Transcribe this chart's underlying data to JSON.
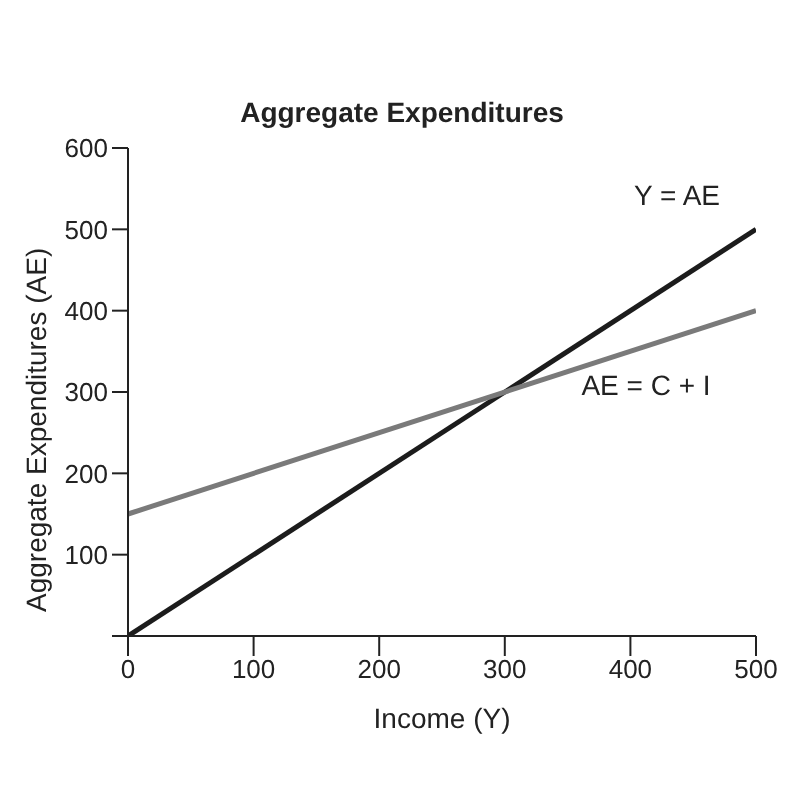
{
  "chart_data": {
    "type": "line",
    "title": "Aggregate Expenditures",
    "xlabel": "Income (Y)",
    "ylabel": "Aggregate Expenditures (AE)",
    "x": [
      0,
      500
    ],
    "series": [
      {
        "name": "Y = AE",
        "color": "#1c1c1c",
        "values": [
          0,
          500
        ]
      },
      {
        "name": "AE = C + I",
        "color": "#7a7a7a",
        "values": [
          150,
          400
        ]
      }
    ],
    "xlim": [
      0,
      500
    ],
    "xticks": [
      0,
      100,
      200,
      300,
      400,
      500
    ],
    "ylim": [
      0,
      600
    ],
    "yticks": [
      {
        "value": 0,
        "label": null
      },
      100,
      200,
      300,
      400,
      500,
      600
    ],
    "grid": false,
    "legend": false,
    "marker": "none",
    "line_style": "solid"
  }
}
